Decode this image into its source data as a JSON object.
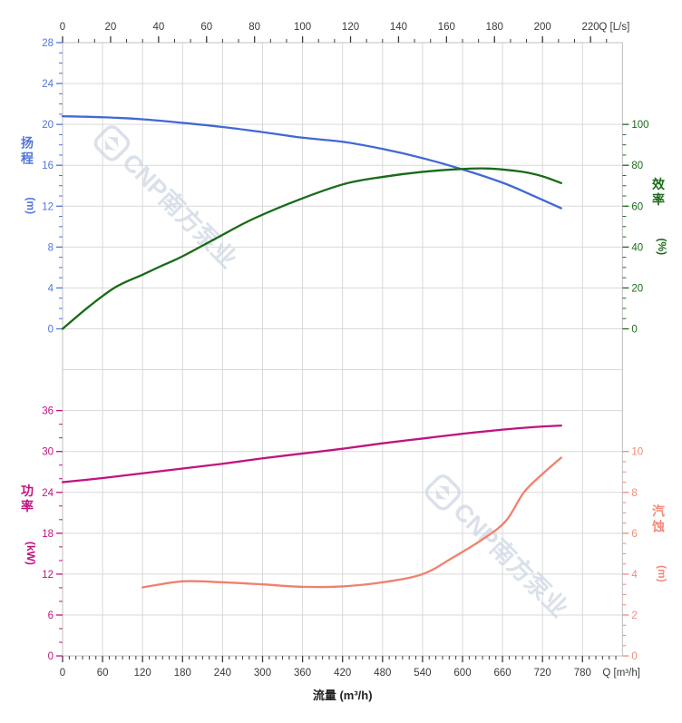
{
  "watermark": {
    "logo": "cnp-logo",
    "text": "CNP南方泵业",
    "color": "#cbd5e3"
  },
  "chart_data": {
    "type": "line",
    "title": "",
    "x_axis_bottom": {
      "title": "流量 (m³/h)",
      "unit_label": "Q [m³/h]",
      "ticks": [
        0,
        60,
        120,
        180,
        240,
        300,
        360,
        420,
        480,
        540,
        600,
        660,
        720,
        780
      ],
      "minor_step": 10,
      "max": 840,
      "tick_color": "#3a3a3a"
    },
    "x_axis_top": {
      "unit_label": "Q [L/s]",
      "ticks": [
        0,
        20,
        40,
        60,
        80,
        100,
        120,
        140,
        160,
        180,
        200,
        220
      ],
      "minor_divisions": 3,
      "max": 233.3,
      "ls_to_m3h": 3.6,
      "tick_color": "#3a3a3a"
    },
    "grid": {
      "on": true,
      "color": "#d9d9d9",
      "border_color": "#c2c2c2"
    },
    "panels": [
      {
        "name": "head-efficiency",
        "left_axis": {
          "title": "扬程",
          "unit": "(m)",
          "color": "#5274dd",
          "curve_color": "#4168d6",
          "min": 0,
          "max": 28,
          "step": 4,
          "minor_step": 1
        },
        "right_axis": {
          "title": "效率",
          "unit": "(%)",
          "color": "#1a6b1a",
          "curve_color": "#176b17",
          "min": 0,
          "max": 100,
          "step": 20,
          "minor_step": 5
        },
        "series": [
          {
            "name": "扬程 H",
            "axis": "left",
            "x_unit": "m³/h",
            "points": [
              [
                0,
                20.8
              ],
              [
                60,
                20.7
              ],
              [
                120,
                20.5
              ],
              [
                180,
                20.15
              ],
              [
                240,
                19.75
              ],
              [
                300,
                19.25
              ],
              [
                360,
                18.7
              ],
              [
                420,
                18.3
              ],
              [
                480,
                17.6
              ],
              [
                540,
                16.7
              ],
              [
                600,
                15.6
              ],
              [
                660,
                14.3
              ],
              [
                700,
                13.2
              ],
              [
                748,
                11.8
              ]
            ]
          },
          {
            "name": "效率 η",
            "axis": "right",
            "x_unit": "m³/h",
            "points": [
              [
                0,
                0
              ],
              [
                40,
                11
              ],
              [
                80,
                20.5
              ],
              [
                120,
                26.5
              ],
              [
                151,
                31.2
              ],
              [
                180,
                35.5
              ],
              [
                240,
                46
              ],
              [
                286,
                53.8
              ],
              [
                354,
                63.1
              ],
              [
                422,
                70.8
              ],
              [
                480,
                74.3
              ],
              [
                540,
                76.8
              ],
              [
                600,
                78.2
              ],
              [
                640,
                78.4
              ],
              [
                690,
                76.8
              ],
              [
                720,
                74.6
              ],
              [
                748,
                71.3
              ]
            ]
          }
        ]
      },
      {
        "name": "power-npsh",
        "left_axis": {
          "title": "功率",
          "unit": "(kW)",
          "color": "#c01380",
          "curve_color": "#c01380",
          "min": 0,
          "max": 36,
          "step": 6,
          "minor_step": 2
        },
        "right_axis": {
          "title": "汽蚀",
          "unit": "(m)",
          "color": "#f28a7b",
          "curve_color": "#f0806e",
          "min": 0,
          "max": 10,
          "step": 2,
          "minor_step": 0.5
        },
        "series": [
          {
            "name": "功率 P",
            "axis": "left",
            "x_unit": "m³/h",
            "points": [
              [
                0,
                25.5
              ],
              [
                60,
                26.1
              ],
              [
                120,
                26.8
              ],
              [
                180,
                27.5
              ],
              [
                240,
                28.2
              ],
              [
                300,
                29.0
              ],
              [
                360,
                29.7
              ],
              [
                420,
                30.4
              ],
              [
                480,
                31.2
              ],
              [
                540,
                31.9
              ],
              [
                600,
                32.6
              ],
              [
                660,
                33.2
              ],
              [
                710,
                33.6
              ],
              [
                748,
                33.8
              ]
            ]
          },
          {
            "name": "汽蚀 NPSH",
            "axis": "right",
            "x_unit": "m³/h",
            "points": [
              [
                120,
                3.35
              ],
              [
                180,
                3.65
              ],
              [
                240,
                3.6
              ],
              [
                300,
                3.5
              ],
              [
                360,
                3.38
              ],
              [
                420,
                3.4
              ],
              [
                480,
                3.6
              ],
              [
                540,
                4.0
              ],
              [
                585,
                4.8
              ],
              [
                630,
                5.7
              ],
              [
                665,
                6.6
              ],
              [
                692,
                8.0
              ],
              [
                720,
                8.9
              ],
              [
                748,
                9.7
              ]
            ]
          }
        ]
      }
    ]
  }
}
